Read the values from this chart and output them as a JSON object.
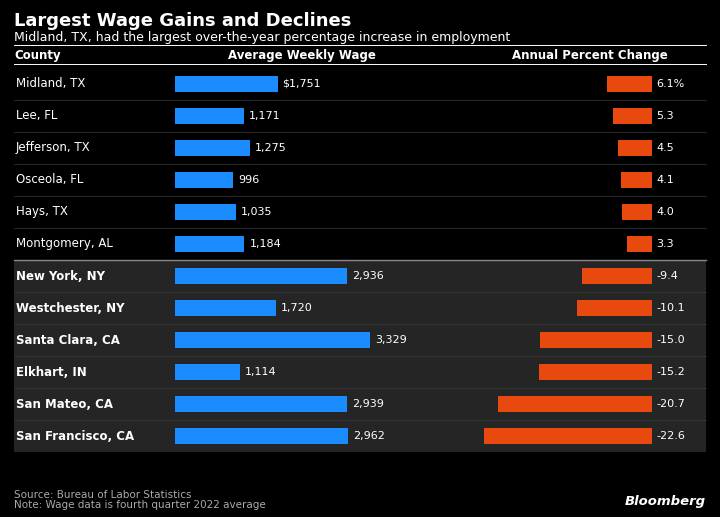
{
  "title": "Largest Wage Gains and Declines",
  "subtitle": "Midland, TX, had the largest over-the-year percentage increase in employment",
  "source": "Source: Bureau of Labor Statistics",
  "note": "Note: Wage data is fourth quarter 2022 average",
  "col_county": "County",
  "col_wage": "Average Weekly Wage",
  "col_pct": "Annual Percent Change",
  "counties": [
    "Midland, TX",
    "Lee, FL",
    "Jefferson, TX",
    "Osceola, FL",
    "Hays, TX",
    "Montgomery, AL",
    "New York, NY",
    "Westchester, NY",
    "Santa Clara, CA",
    "Elkhart, IN",
    "San Mateo, CA",
    "San Francisco, CA"
  ],
  "wages": [
    1751,
    1171,
    1275,
    996,
    1035,
    1184,
    2936,
    1720,
    3329,
    1114,
    2939,
    2962
  ],
  "wage_labels": [
    "$1,751",
    "1,171",
    "1,275",
    "996",
    "1,035",
    "1,184",
    "2,936",
    "1,720",
    "3,329",
    "1,114",
    "2,939",
    "2,962"
  ],
  "pct_changes": [
    6.1,
    5.3,
    4.5,
    4.1,
    4.0,
    3.3,
    -9.4,
    -10.1,
    -15.0,
    -15.2,
    -20.7,
    -22.6
  ],
  "pct_labels": [
    "6.1%",
    "5.3",
    "4.5",
    "4.1",
    "4.0",
    "3.3",
    "-9.4",
    "-10.1",
    "-15.0",
    "-15.2",
    "-20.7",
    "-22.6"
  ],
  "divider_row": 6,
  "bg_black": "#000000",
  "bg_dark": "#252525",
  "bar_blue": "#1a8cff",
  "bar_orange": "#e8490f",
  "text_white": "#ffffff",
  "text_gray": "#aaaaaa",
  "wage_max": 3500,
  "pct_max": 23.5
}
